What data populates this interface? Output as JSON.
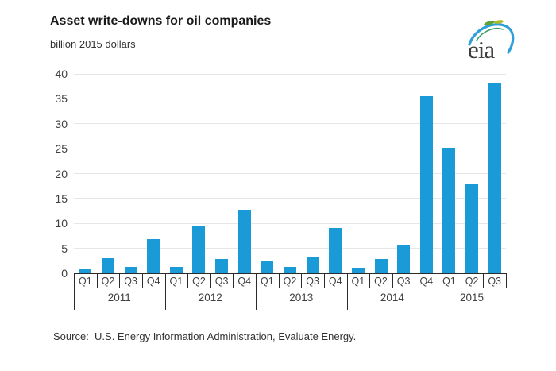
{
  "header": {
    "title": "Asset write-downs for oil companies",
    "subtitle": "billion 2015 dollars",
    "logo_text": "eia"
  },
  "chart_data": {
    "type": "bar",
    "title": "Asset write-downs for oil companies",
    "ylabel": "billion 2015 dollars",
    "ylim": [
      0,
      40
    ],
    "ytick_step": 5,
    "yticks": [
      0,
      5,
      10,
      15,
      20,
      25,
      30,
      35,
      40
    ],
    "grid": true,
    "legend_position": "none",
    "bar_color": "#1a9ad6",
    "categories": [
      "2011 Q1",
      "2011 Q2",
      "2011 Q3",
      "2011 Q4",
      "2012 Q1",
      "2012 Q2",
      "2012 Q3",
      "2012 Q4",
      "2013 Q1",
      "2013 Q2",
      "2013 Q3",
      "2013 Q4",
      "2014 Q1",
      "2014 Q2",
      "2014 Q3",
      "2014 Q4",
      "2015 Q1",
      "2015 Q2",
      "2015 Q3"
    ],
    "values": [
      0.9,
      3.1,
      1.2,
      6.8,
      1.3,
      9.5,
      2.8,
      12.7,
      2.5,
      1.2,
      3.4,
      9.1,
      1.1,
      2.9,
      5.5,
      35.6,
      25.2,
      17.9,
      38.1
    ],
    "year_groups": [
      {
        "label": "2011",
        "quarters": [
          "Q1",
          "Q2",
          "Q3",
          "Q4"
        ]
      },
      {
        "label": "2012",
        "quarters": [
          "Q1",
          "Q2",
          "Q3",
          "Q4"
        ]
      },
      {
        "label": "2013",
        "quarters": [
          "Q1",
          "Q2",
          "Q3",
          "Q4"
        ]
      },
      {
        "label": "2014",
        "quarters": [
          "Q1",
          "Q2",
          "Q3",
          "Q4"
        ]
      },
      {
        "label": "2015",
        "quarters": [
          "Q1",
          "Q2",
          "Q3"
        ]
      }
    ]
  },
  "colors": {
    "bar": "#1a9ad6",
    "gridline": "#e6e6e6",
    "axis": "#2b2b2b",
    "logo_blue": "#2e9fd9",
    "logo_green": "#5fa338",
    "logo_yellow_green": "#aebc2a",
    "logo_teal": "#3aa06a"
  },
  "footer": {
    "source": "Source:  U.S. Energy Information Administration, Evaluate Energy."
  }
}
